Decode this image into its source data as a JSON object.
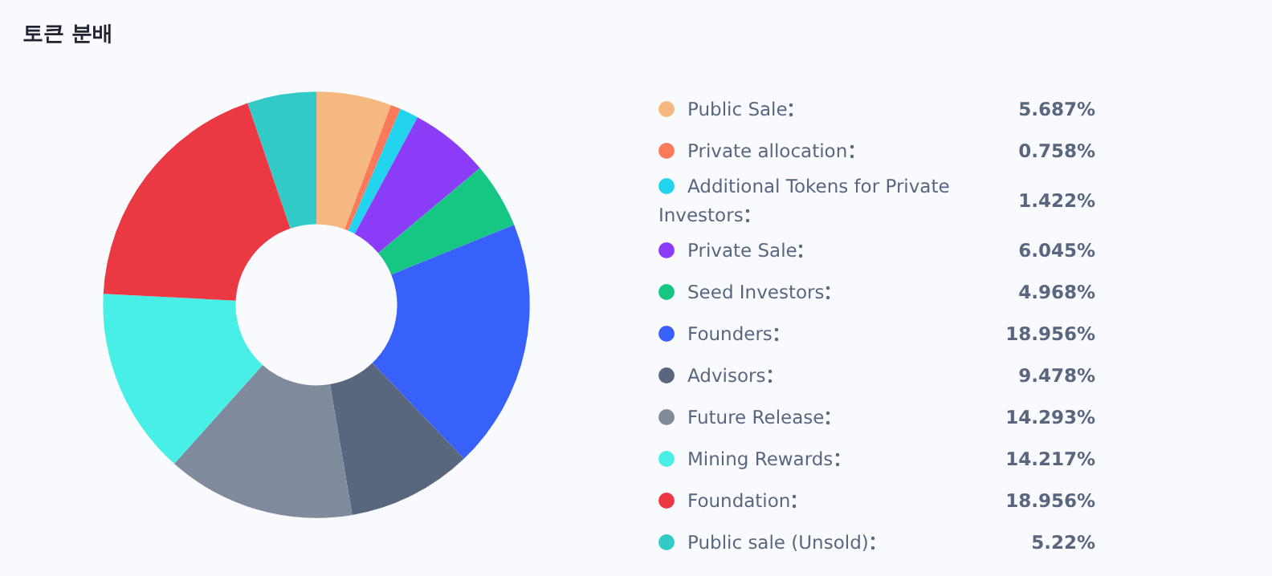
{
  "chart_data": {
    "type": "donut",
    "title": "토큰 분배",
    "legend": "right",
    "categories": [
      "Public Sale",
      "Private allocation",
      "Additional Tokens for Private Investors",
      "Private Sale",
      "Seed Investors",
      "Founders",
      "Advisors",
      "Future Release",
      "Mining Rewards",
      "Foundation",
      "Public sale (Unsold)"
    ],
    "values": [
      5.687,
      0.758,
      1.422,
      6.045,
      4.968,
      18.956,
      9.478,
      14.293,
      14.217,
      18.956,
      5.22
    ],
    "value_labels": [
      "5.687%",
      "0.758%",
      "1.422%",
      "6.045%",
      "4.968%",
      "18.956%",
      "9.478%",
      "14.293%",
      "14.217%",
      "18.956%",
      "5.22%"
    ],
    "colors": [
      "#f5b880",
      "#fa7a5a",
      "#22d3ee",
      "#8b3cf7",
      "#16c784",
      "#3861fb",
      "#58667e",
      "#808a9d",
      "#48efe6",
      "#ea3943",
      "#32cac6"
    ]
  }
}
